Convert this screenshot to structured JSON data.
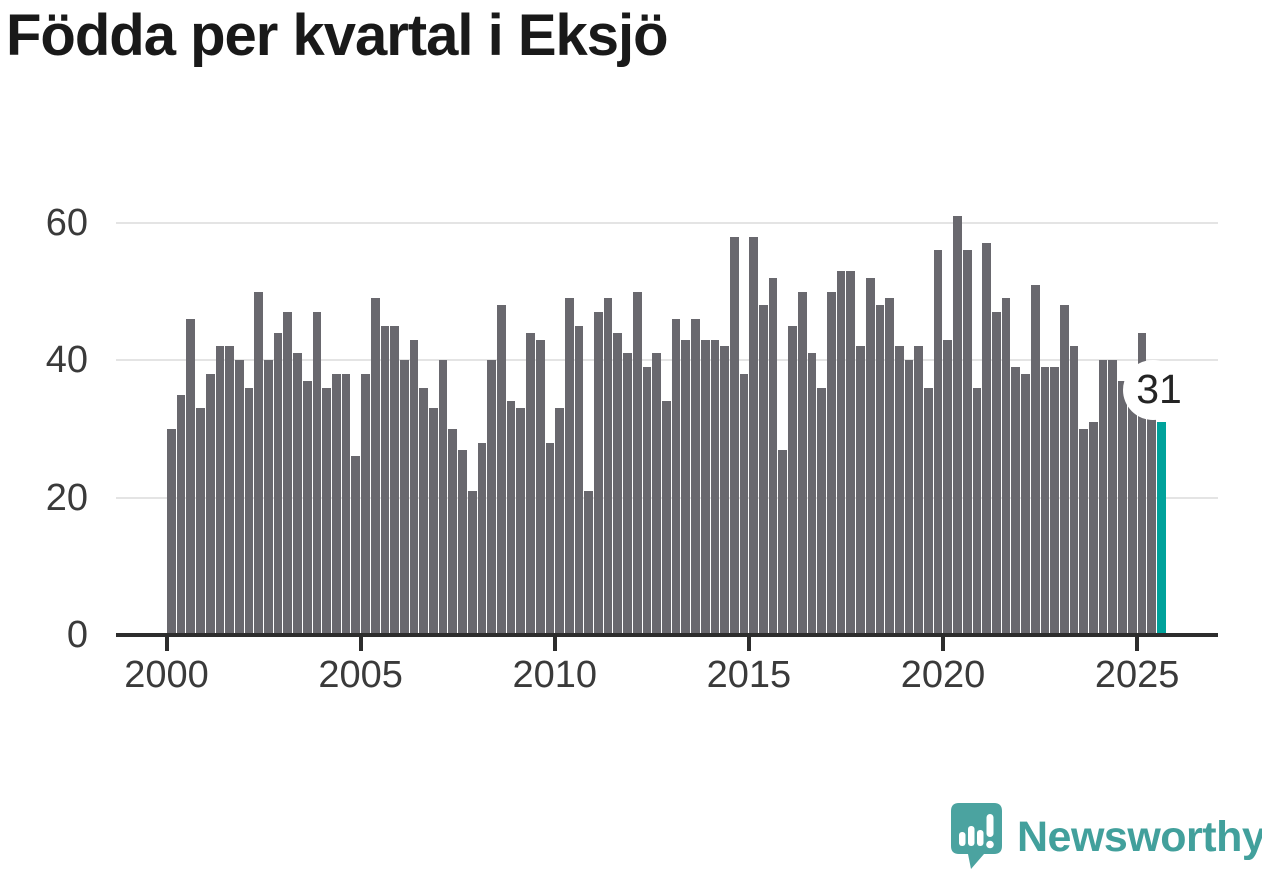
{
  "title": "Födda per kvartal i Eksjö",
  "chart_data": {
    "type": "bar",
    "title": "Födda per kvartal i Eksjö",
    "x_start": {
      "year": 2000,
      "quarter": 1
    },
    "x_end": {
      "year": 2025,
      "quarter": 3
    },
    "x_tick_years": [
      2000,
      2005,
      2010,
      2015,
      2020,
      2025
    ],
    "x_tick_labels": [
      "2000",
      "2005",
      "2010",
      "2015",
      "2020",
      "2025"
    ],
    "y_ticks": [
      0,
      20,
      40,
      60
    ],
    "ylim": [
      0,
      65
    ],
    "grid": true,
    "legend": false,
    "series": [
      {
        "name": "Födda per kvartal",
        "values": [
          30,
          35,
          46,
          33,
          38,
          42,
          42,
          40,
          36,
          50,
          40,
          44,
          47,
          41,
          37,
          47,
          36,
          38,
          38,
          26,
          38,
          49,
          45,
          45,
          40,
          43,
          36,
          33,
          40,
          30,
          27,
          21,
          28,
          40,
          48,
          34,
          33,
          44,
          43,
          28,
          33,
          49,
          45,
          21,
          47,
          49,
          44,
          41,
          50,
          39,
          41,
          34,
          46,
          43,
          46,
          43,
          43,
          42,
          58,
          38,
          58,
          48,
          52,
          27,
          45,
          50,
          41,
          36,
          50,
          53,
          53,
          42,
          52,
          48,
          49,
          42,
          40,
          42,
          36,
          56,
          43,
          61,
          56,
          36,
          57,
          47,
          49,
          39,
          38,
          51,
          39,
          39,
          48,
          42,
          30,
          31,
          40,
          40,
          37,
          35,
          44,
          33,
          31
        ]
      }
    ],
    "highlight_last_bar": true,
    "annotation": {
      "text": "31"
    },
    "colors": {
      "bar": "#69686e",
      "highlight": "#00a29b",
      "grid": "#e4e4e4",
      "axis": "#2d2d2d",
      "tick_label": "#3a3a3a",
      "title": "#191919"
    }
  },
  "footer": {
    "brand": "Newsworthy",
    "logo_color": "#4ba3a0",
    "text_color": "#42a09c"
  }
}
